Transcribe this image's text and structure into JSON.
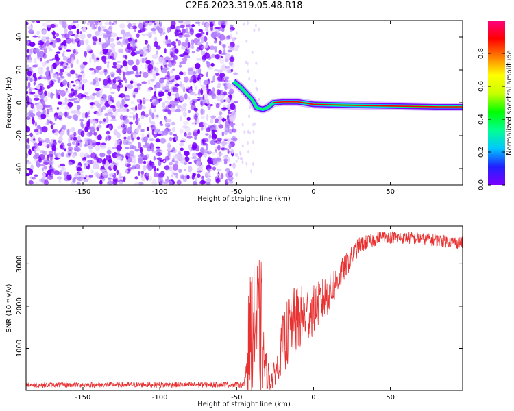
{
  "title": "C2E6.2023.319.05.48.R18",
  "colors": {
    "line": "#e83232",
    "frame": "#000000",
    "colorbar": [
      "#7a00ff",
      "#2020ff",
      "#00c8ff",
      "#00ff90",
      "#00ff00",
      "#c8ff00",
      "#ffff00",
      "#ff8000",
      "#ff0000",
      "#ff0080"
    ]
  },
  "chart_data": [
    {
      "type": "heatmap",
      "title": "",
      "xlabel": "Height of straight line (km)",
      "ylabel": "Frequency (Hz)",
      "xlim": [
        -187,
        97
      ],
      "ylim": [
        -50,
        50
      ],
      "xticks": [
        -150,
        -100,
        -50,
        0,
        50
      ],
      "yticks": [
        -40,
        -20,
        0,
        20,
        40
      ],
      "xtick_labels": [
        "-150",
        "-100",
        "-50",
        "0",
        "50"
      ],
      "ytick_labels": [
        "-40",
        "-20",
        "0",
        "20",
        "40"
      ],
      "colorbar": {
        "label": "Normalized spectral amplitude",
        "range": [
          0,
          1
        ],
        "ticks": [
          0.0,
          0.2,
          0.4,
          0.6,
          0.8
        ],
        "tick_labels": [
          "0.0",
          "0.2",
          "0.4",
          "0.6",
          "0.8"
        ]
      },
      "features": {
        "noise_region_x": [
          -187,
          -50
        ],
        "noise_amplitude": 0.15,
        "carrier_track": [
          {
            "x": -52,
            "freq": 13
          },
          {
            "x": -48,
            "freq": 10
          },
          {
            "x": -44,
            "freq": 6
          },
          {
            "x": -40,
            "freq": 2
          },
          {
            "x": -37,
            "freq": -3
          },
          {
            "x": -33,
            "freq": -4
          },
          {
            "x": -30,
            "freq": -3
          },
          {
            "x": -26,
            "freq": 0
          },
          {
            "x": -20,
            "freq": 0.5
          },
          {
            "x": -10,
            "freq": 0.5
          },
          {
            "x": 0,
            "freq": -1
          },
          {
            "x": 20,
            "freq": -1.5
          },
          {
            "x": 50,
            "freq": -2
          },
          {
            "x": 80,
            "freq": -2.5
          },
          {
            "x": 97,
            "freq": -2.5
          }
        ],
        "carrier_peak_amplitude": 0.9
      }
    },
    {
      "type": "line",
      "title": "",
      "xlabel": "Height of straight line (km)",
      "ylabel": "SNR (10 * v/v)",
      "xlim": [
        -187,
        97
      ],
      "ylim": [
        0,
        3900
      ],
      "xticks": [
        -150,
        -100,
        -50,
        0,
        50
      ],
      "yticks": [
        1000,
        2000,
        3000
      ],
      "xtick_labels": [
        "-150",
        "-100",
        "-50",
        "0",
        "50"
      ],
      "ytick_labels": [
        "1000",
        "2000",
        "3000"
      ],
      "series": [
        {
          "name": "SNR",
          "envelope": [
            {
              "x": -187,
              "mean": 130,
              "jitter": 60
            },
            {
              "x": -45,
              "mean": 140,
              "jitter": 70
            },
            {
              "x": -42,
              "mean": 1200,
              "jitter": 1400
            },
            {
              "x": -38,
              "mean": 1700,
              "jitter": 1500
            },
            {
              "x": -34,
              "mean": 1400,
              "jitter": 1700
            },
            {
              "x": -32,
              "mean": 600,
              "jitter": 500
            },
            {
              "x": -28,
              "mean": 200,
              "jitter": 300
            },
            {
              "x": -24,
              "mean": 500,
              "jitter": 300
            },
            {
              "x": -20,
              "mean": 1100,
              "jitter": 700
            },
            {
              "x": -15,
              "mean": 1500,
              "jitter": 900
            },
            {
              "x": -10,
              "mean": 1700,
              "jitter": 800
            },
            {
              "x": 0,
              "mean": 1900,
              "jitter": 600
            },
            {
              "x": 10,
              "mean": 2300,
              "jitter": 500
            },
            {
              "x": 20,
              "mean": 2900,
              "jitter": 300
            },
            {
              "x": 30,
              "mean": 3450,
              "jitter": 200
            },
            {
              "x": 45,
              "mean": 3650,
              "jitter": 150
            },
            {
              "x": 70,
              "mean": 3600,
              "jitter": 150
            },
            {
              "x": 97,
              "mean": 3500,
              "jitter": 150
            }
          ]
        }
      ]
    }
  ]
}
